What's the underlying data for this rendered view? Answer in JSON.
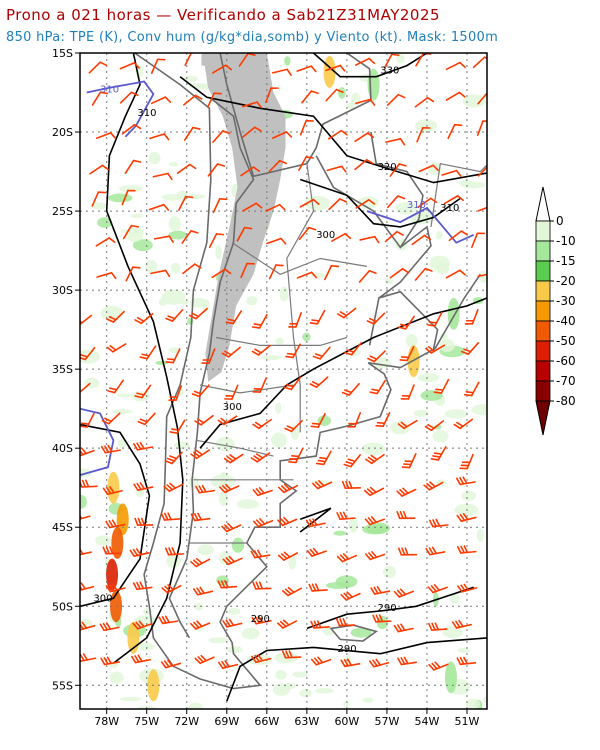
{
  "header": {
    "title": "Prono a 021 horas — Verificando a Sab21Z31MAY2025",
    "subtitle": "850 hPa: TPE (K), Conv hum (g/kg*dia,somb) y Viento (kt). Mask: 1500m"
  },
  "map": {
    "lon_range": [
      -80,
      -49.5
    ],
    "lat_range": [
      -56.5,
      -15
    ],
    "lon_ticks": [
      "78W",
      "75W",
      "72W",
      "69W",
      "66W",
      "63W",
      "60W",
      "57W",
      "54W",
      "51W"
    ],
    "lat_ticks": [
      "15S",
      "20S",
      "25S",
      "30S",
      "35S",
      "40S",
      "45S",
      "50S",
      "55S"
    ],
    "mask_color": "#c0c0c0",
    "contour_color": "#000000",
    "highlight_contour_color": "#5a5acc",
    "wind_barb_color": "#ff3a00",
    "grid": "dotted",
    "isoline_labels": [
      {
        "text": "310",
        "lon": -78.5,
        "lat": -17.5,
        "color": "#5a5acc"
      },
      {
        "text": "310",
        "lon": -75.7,
        "lat": -19.0,
        "color": "#000000"
      },
      {
        "text": "330",
        "lon": -57.5,
        "lat": -16.3,
        "color": "#000000"
      },
      {
        "text": "320",
        "lon": -57.7,
        "lat": -22.4,
        "color": "#000000"
      },
      {
        "text": "310",
        "lon": -55.5,
        "lat": -24.8,
        "color": "#5a5acc"
      },
      {
        "text": "310",
        "lon": -53.0,
        "lat": -25.0,
        "color": "#000000"
      },
      {
        "text": "300",
        "lon": -62.3,
        "lat": -26.7,
        "color": "#000000"
      },
      {
        "text": "300",
        "lon": -69.3,
        "lat": -37.6,
        "color": "#000000"
      },
      {
        "text": "300",
        "lon": -79.0,
        "lat": -49.7,
        "color": "#000000"
      },
      {
        "text": "290",
        "lon": -67.2,
        "lat": -51.0,
        "color": "#000000"
      },
      {
        "text": "290",
        "lon": -57.7,
        "lat": -50.3,
        "color": "#000000"
      },
      {
        "text": "290",
        "lon": -60.7,
        "lat": -52.9,
        "color": "#000000"
      }
    ]
  },
  "colorbar": {
    "labels": [
      "0",
      "-10",
      "-15",
      "-20",
      "-30",
      "-40",
      "-50",
      "-60",
      "-70",
      "-80"
    ],
    "colors": [
      "#ffffff",
      "#e2f7da",
      "#a6e89b",
      "#5acd4e",
      "#f9ca4a",
      "#f59a00",
      "#f05a00",
      "#dc1f00",
      "#b80000",
      "#8a0000",
      "#6e0000"
    ]
  }
}
